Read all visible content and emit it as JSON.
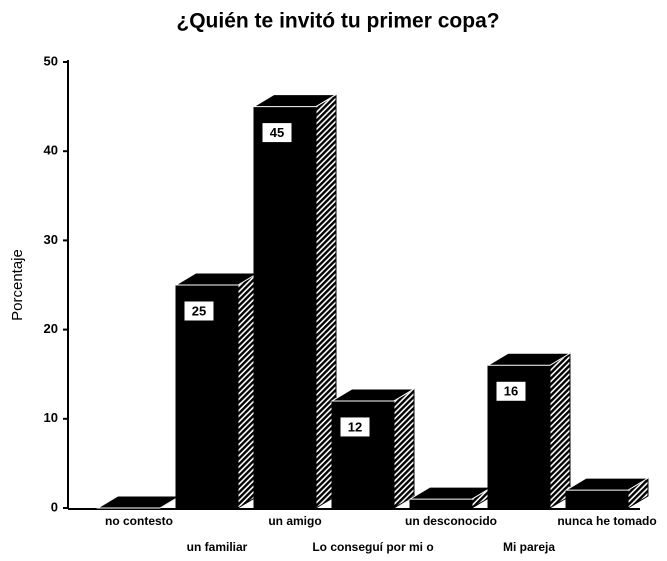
{
  "chart_data": {
    "type": "bar3d",
    "title": "¿Quién te invitó tu primer copa?",
    "y_label": "Porcentaje",
    "categories": [
      "no contesto",
      "un familiar",
      "un amigo",
      "Lo conseguí por mi o",
      "un desconocido",
      "Mi pareja",
      "nunca he tomado"
    ],
    "values": [
      0,
      25,
      45,
      12,
      1,
      16,
      2
    ],
    "value_labels": [
      null,
      "25",
      "45",
      "12",
      null,
      "16",
      null
    ],
    "color": "#000000",
    "ylim": [
      0,
      50
    ],
    "yticks": [
      0,
      10,
      20,
      30,
      40,
      50
    ],
    "grid": false
  }
}
